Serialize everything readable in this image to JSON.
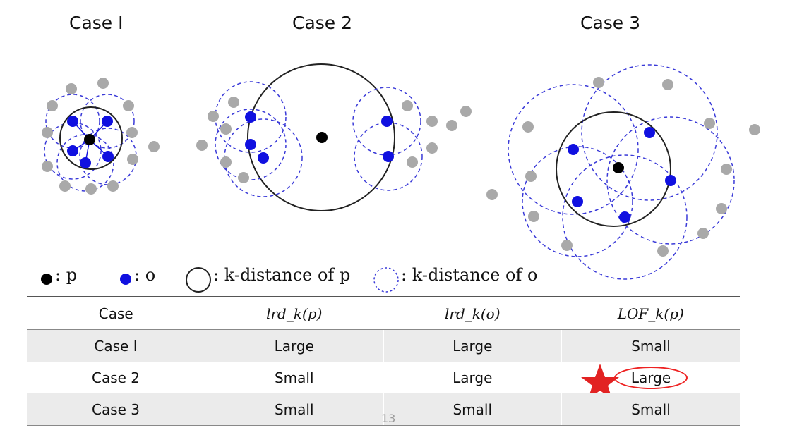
{
  "titles": [
    "Case I",
    "Case 2",
    "Case 3"
  ],
  "legend": {
    "p_symbol": ": p",
    "o_symbol": ": o",
    "k_p": ": k-distance of p",
    "k_o": ": k-distance of o"
  },
  "table": {
    "headers": [
      "Case",
      "lrd_k(p)",
      "lrd_k(o)",
      "LOF_k(p)"
    ],
    "rows": [
      [
        "Case I",
        "Large",
        "Large",
        "Small"
      ],
      [
        "Case 2",
        "Small",
        "Large",
        "Large"
      ],
      [
        "Case 3",
        "Small",
        "Small",
        "Small"
      ]
    ]
  },
  "page_number": "13",
  "colors": {
    "p": "#000000",
    "o": "#1010e0",
    "other": "#a9a9a9",
    "dashed": "#3a3ad8",
    "highlight": "#e22222"
  }
}
